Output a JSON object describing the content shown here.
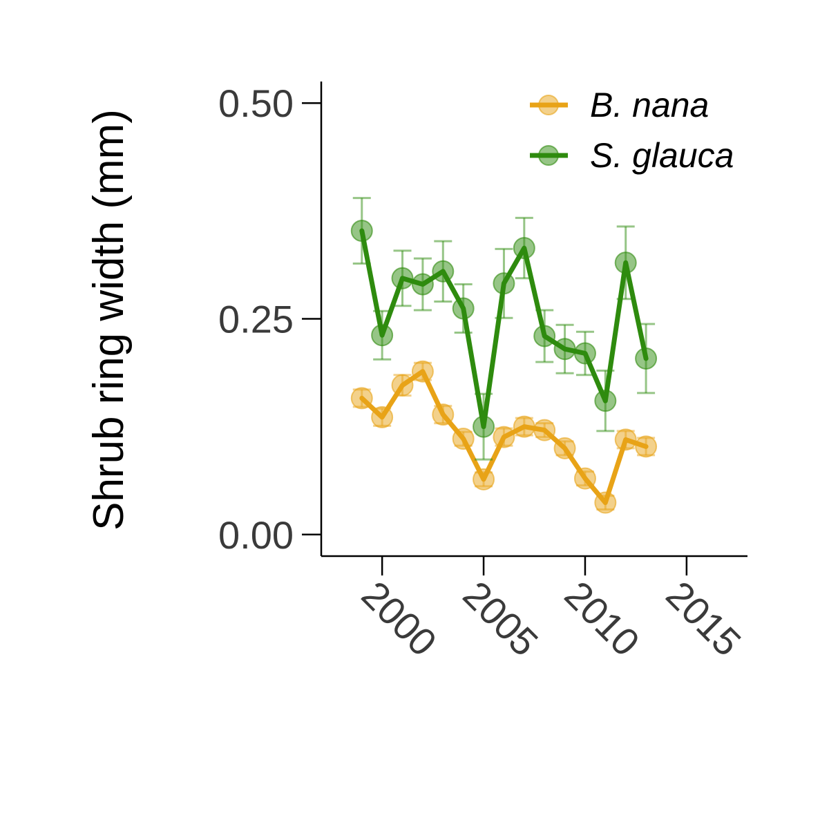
{
  "chart_data": {
    "type": "line",
    "ylabel": "Shrub ring width (mm)",
    "xlabel": "",
    "xlim": [
      1997,
      2018
    ],
    "ylim": [
      -0.025,
      0.525
    ],
    "x_ticks": [
      {
        "value": 2000,
        "label": "2000"
      },
      {
        "value": 2005,
        "label": "2005"
      },
      {
        "value": 2010,
        "label": "2010"
      },
      {
        "value": 2015,
        "label": "2015"
      }
    ],
    "y_ticks": [
      {
        "value": 0.0,
        "label": "0.00"
      },
      {
        "value": 0.25,
        "label": "0.25"
      },
      {
        "value": 0.5,
        "label": "0.50"
      }
    ],
    "legend_position": "top-right",
    "grid": false,
    "x": [
      1999,
      2000,
      2001,
      2002,
      2003,
      2004,
      2005,
      2006,
      2007,
      2008,
      2009,
      2010,
      2011,
      2012,
      2013
    ],
    "series": [
      {
        "name": "B. nana",
        "color": "#E8A317",
        "values": [
          0.158,
          0.136,
          0.173,
          0.189,
          0.139,
          0.111,
          0.064,
          0.113,
          0.125,
          0.121,
          0.1,
          0.065,
          0.037,
          0.11,
          0.102
        ],
        "error": [
          0.01,
          0.01,
          0.012,
          0.01,
          0.01,
          0.008,
          0.008,
          0.01,
          0.01,
          0.008,
          0.008,
          0.008,
          0.008,
          0.01,
          0.01
        ]
      },
      {
        "name": "S. glauca",
        "color": "#2E8B0E",
        "values": [
          0.352,
          0.231,
          0.297,
          0.29,
          0.305,
          0.262,
          0.125,
          0.291,
          0.332,
          0.23,
          0.215,
          0.21,
          0.155,
          0.315,
          0.204
        ],
        "error": [
          0.038,
          0.028,
          0.032,
          0.03,
          0.035,
          0.028,
          0.038,
          0.04,
          0.035,
          0.03,
          0.028,
          0.025,
          0.035,
          0.042,
          0.04
        ]
      }
    ]
  }
}
